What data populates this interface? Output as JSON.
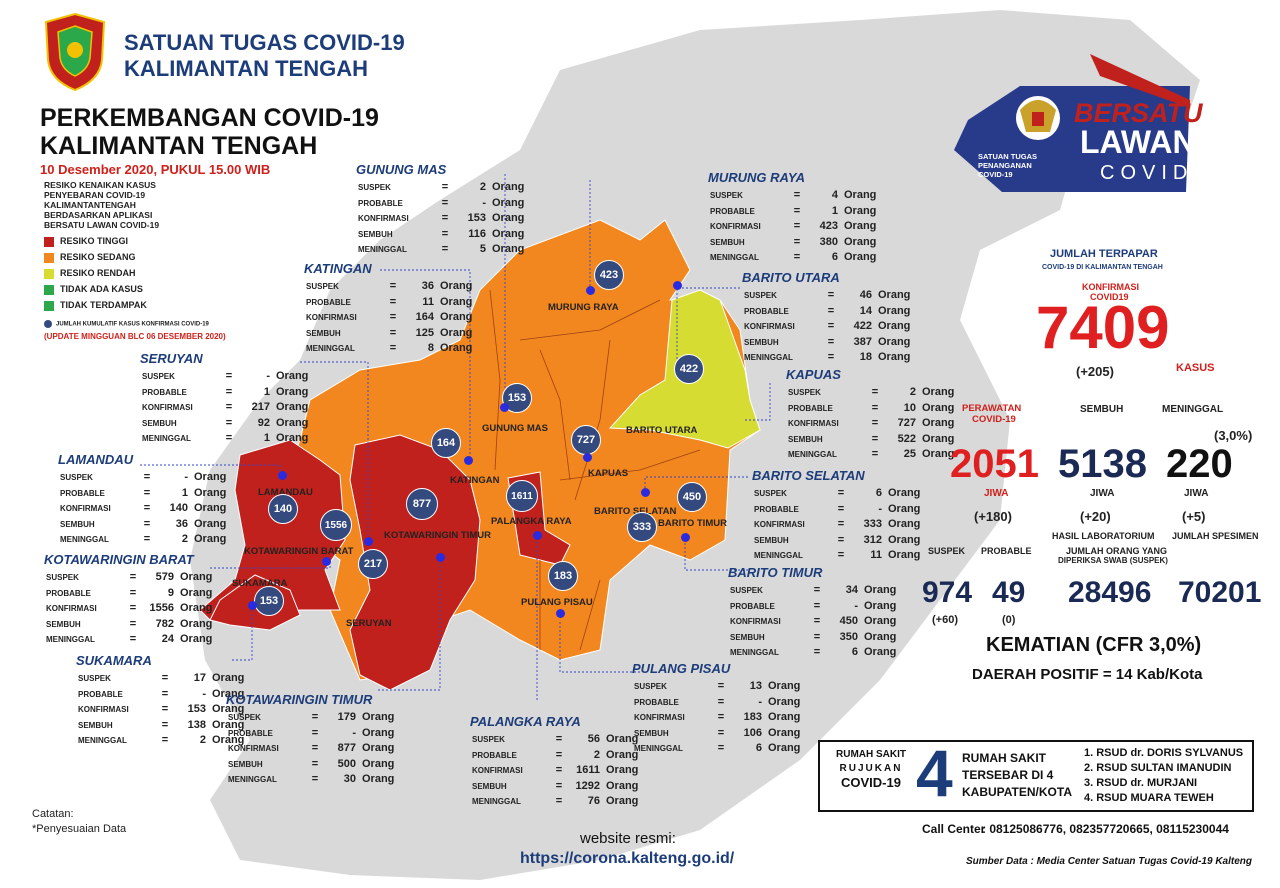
{
  "header": {
    "org_line1": "SATUAN TUGAS COVID-19",
    "org_line2": "KALIMANTAN TENGAH",
    "title_line1": "PERKEMBANGAN COVID-19",
    "title_line2": "KALIMANTAN TENGAH",
    "date": "10 Desember 2020, PUKUL 15.00 WIB"
  },
  "legend": {
    "heading": [
      "RESIKO KENAIKAN KASUS",
      "PENYEBARAN COVID-19",
      "KALIMANTANTENGAH",
      "BERDASARKAN APLIKASI",
      "BERSATU LAWAN COVID-19"
    ],
    "items": [
      {
        "label": "RESIKO TINGGI",
        "color": "#c0211d"
      },
      {
        "label": "RESIKO SEDANG",
        "color": "#f2871f"
      },
      {
        "label": "RESIKO RENDAH",
        "color": "#d6dc32"
      },
      {
        "label": "TIDAK ADA KASUS",
        "color": "#2aa84a"
      },
      {
        "label": "TIDAK TERDAMPAK",
        "color": "#2aa84a"
      }
    ],
    "dot_note": "JUMLAH KUMULATIF KASUS KONFIRMASI COVID-19",
    "update_note": "(UPDATE MINGGUAN BLC 06 DESEMBER 2020)"
  },
  "stat_labels": {
    "suspek": "SUSPEK",
    "probable": "PROBABLE",
    "konfirmasi": "KONFIRMASI",
    "sembuh": "SEMBUH",
    "meninggal": "MENINGGAL",
    "eq": "=",
    "unit": "Orang"
  },
  "regions": {
    "gunung_mas": {
      "name": "GUNUNG MAS",
      "suspek": "2",
      "probable": "-",
      "konfirmasi": "153",
      "sembuh": "116",
      "meninggal": "5"
    },
    "murung_raya": {
      "name": "MURUNG RAYA",
      "suspek": "4",
      "probable": "1",
      "konfirmasi": "423",
      "sembuh": "380",
      "meninggal": "6"
    },
    "katingan": {
      "name": "KATINGAN",
      "suspek": "36",
      "probable": "11",
      "konfirmasi": "164",
      "sembuh": "125",
      "meninggal": "8"
    },
    "barito_utara": {
      "name": "BARITO UTARA",
      "suspek": "46",
      "probable": "14",
      "konfirmasi": "422",
      "sembuh": "387",
      "meninggal": "18"
    },
    "seruyan": {
      "name": "SERUYAN",
      "suspek": "-",
      "probable": "1",
      "konfirmasi": "217",
      "sembuh": "92",
      "meninggal": "1"
    },
    "kapuas": {
      "name": "KAPUAS",
      "suspek": "2",
      "probable": "10",
      "konfirmasi": "727",
      "sembuh": "522",
      "meninggal": "25"
    },
    "lamandau": {
      "name": "LAMANDAU",
      "suspek": "-",
      "probable": "1",
      "konfirmasi": "140",
      "sembuh": "36",
      "meninggal": "2"
    },
    "barito_selatan": {
      "name": "BARITO SELATAN",
      "suspek": "6",
      "probable": "-",
      "konfirmasi": "333",
      "sembuh": "312",
      "meninggal": "11"
    },
    "kotawaringin_barat": {
      "name": "KOTAWARINGIN BARAT",
      "suspek": "579",
      "probable": "9",
      "konfirmasi": "1556",
      "sembuh": "782",
      "meninggal": "24"
    },
    "barito_timur": {
      "name": "BARITO TIMUR",
      "suspek": "34",
      "probable": "-",
      "konfirmasi": "450",
      "sembuh": "350",
      "meninggal": "6"
    },
    "sukamara": {
      "name": "SUKAMARA",
      "suspek": "17",
      "probable": "-",
      "konfirmasi": "153",
      "sembuh": "138",
      "meninggal": "2"
    },
    "pulang_pisau": {
      "name": "PULANG PISAU",
      "suspek": "13",
      "probable": "-",
      "konfirmasi": "183",
      "sembuh": "106",
      "meninggal": "6"
    },
    "kotawaringin_timur": {
      "name": "KOTAWARINGIN TIMUR",
      "suspek": "179",
      "probable": "-",
      "konfirmasi": "877",
      "sembuh": "500",
      "meninggal": "30"
    },
    "palangka_raya": {
      "name": "PALANGKA RAYA",
      "suspek": "56",
      "probable": "2",
      "konfirmasi": "1611",
      "sembuh": "1292",
      "meninggal": "76"
    }
  },
  "map_labels": {
    "murung_raya": "MURUNG RAYA",
    "barito_utara": "BARITO UTARA",
    "gunung_mas": "GUNUNG MAS",
    "katingan": "KATINGAN",
    "kapuas": "KAPUAS",
    "lamandau": "LAMANDAU",
    "kotawaringin_barat": "KOTAWARINGIN BARAT",
    "kotawaringin_timur": "KOTAWARINGIN TIMUR",
    "sukamara": "SUKAMARA",
    "seruyan": "SERUYAN",
    "palangka_raya": "PALANGKA RAYA",
    "barito_selatan": "BARITO SELATAN",
    "barito_timur": "BARITO TIMUR",
    "pulang_pisau": "PULANG PISAU"
  },
  "map_dots": {
    "murung_raya": "423",
    "barito_utara": "422",
    "gunung_mas": "153",
    "katingan": "164",
    "kapuas": "727",
    "lamandau": "140",
    "kotawaringin_barat": "1556",
    "kotawaringin_timur": "877",
    "sukamara": "153",
    "seruyan": "217",
    "palangka_raya": "1611",
    "barito_selatan": "333",
    "barito_timur": "450",
    "pulang_pisau": "183"
  },
  "risk_colors": {
    "tinggi": "#c0211d",
    "sedang": "#f2871f",
    "rendah": "#d6dc32",
    "base": "#d9d9d9"
  },
  "logo": {
    "small_lines": [
      "SATUAN TUGAS",
      "PENANGANAN",
      "COVID-19"
    ],
    "line1": "BERSATU",
    "line2": "LAWAN",
    "line3": "COVID"
  },
  "summary": {
    "jumlah_terpapar": "JUMLAH TERPAPAR",
    "jumlah_sub": "COVID-19 DI KALIMANTAN TENGAH",
    "konfirmasi_lbl1": "KONFIRMASI",
    "konfirmasi_lbl2": "COVID19",
    "konfirmasi": "7409",
    "konfirmasi_delta": "(+205)",
    "kasus": "KASUS",
    "perawatan_lbl1": "PERAWATAN",
    "perawatan_lbl2": "COVID-19",
    "sembuh_lbl": "SEMBUH",
    "meninggal_lbl": "MENINGGAL",
    "meninggal_pct": "(3,0%)",
    "perawatan": "2051",
    "sembuh": "5138",
    "meninggal": "220",
    "jiwa": "JIWA",
    "perawatan_delta": "(+180)",
    "sembuh_delta": "(+20)",
    "meninggal_delta": "(+5)",
    "suspek_lbl": "SUSPEK",
    "probable_lbl": "PROBABLE",
    "lab_lbl": "HASIL LABORATORIUM",
    "spesimen_lbl": "JUMLAH SPESIMEN",
    "swab_lbl1": "JUMLAH ORANG YANG",
    "swab_lbl2": "DIPERIKSA SWAB (SUSPEK)",
    "suspek": "974",
    "probable": "49",
    "suspek_delta": "(+60)",
    "probable_delta": "(0)",
    "swab": "28496",
    "spesimen": "70201",
    "cfr": "KEMATIAN (CFR 3,0%)",
    "daerah": "DAERAH POSITIF = 14 Kab/Kota"
  },
  "rs": {
    "left": [
      "RUMAH SAKIT",
      "RUJUKAN",
      "COVID-19"
    ],
    "num": "4",
    "mid": [
      "RUMAH SAKIT",
      "TERSEBAR DI 4",
      "KABUPATEN/KOTA"
    ],
    "list": [
      "1. RSUD dr. DORIS SYLVANUS",
      "2. RSUD SULTAN IMANUDIN",
      "3. RSUD dr. MURJANI",
      "4. RSUD MUARA TEWEH"
    ]
  },
  "footer": {
    "call_label": "Call Center",
    "call_numbers": ": 08125086776, 082357720665, 08115230044",
    "sumber": "Sumber Data : Media Center Satuan Tugas Covid-19 Kalteng",
    "catatan1": "Catatan:",
    "catatan2": "*Penyesuaian Data",
    "web_label": "website resmi:",
    "web_url": "https://corona.kalteng.go.id/"
  }
}
